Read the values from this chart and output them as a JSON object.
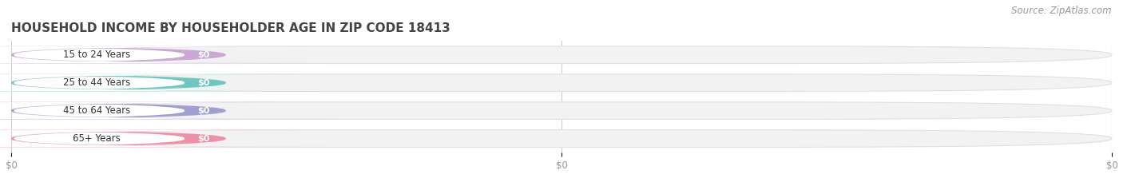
{
  "title": "HOUSEHOLD INCOME BY HOUSEHOLDER AGE IN ZIP CODE 18413",
  "source": "Source: ZipAtlas.com",
  "categories": [
    "15 to 24 Years",
    "25 to 44 Years",
    "45 to 64 Years",
    "65+ Years"
  ],
  "values": [
    0,
    0,
    0,
    0
  ],
  "bar_colors": [
    "#c9a8d4",
    "#6ec8c0",
    "#a0a0d0",
    "#f090a8"
  ],
  "background_color": "#ffffff",
  "bar_bg_color": "#f2f2f2",
  "bar_bg_border_color": "#e0e0e0",
  "title_fontsize": 11,
  "source_fontsize": 8.5,
  "x_ticks": [
    0.0,
    0.5,
    1.0
  ],
  "x_tick_labels": [
    "$0",
    "$0",
    "$0"
  ]
}
